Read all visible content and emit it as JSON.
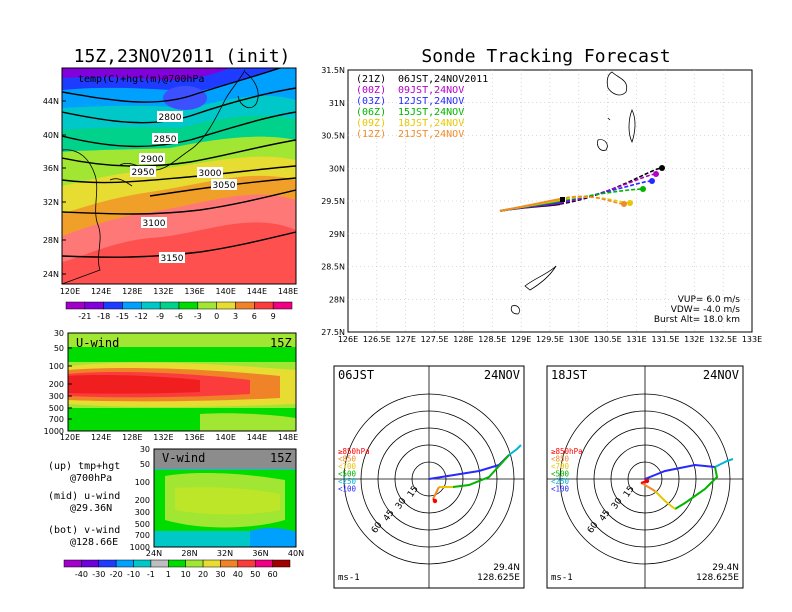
{
  "left_title": "15Z,23NOV2011 (init)",
  "right_title": "Sonde Tracking Forecast",
  "temp_map": {
    "label": "temp(C)+hgt(m)@700hPa",
    "lat_ticks": [
      "44N",
      "40N",
      "36N",
      "32N",
      "28N",
      "24N"
    ],
    "lon_ticks": [
      "120E",
      "124E",
      "128E",
      "132E",
      "136E",
      "140E",
      "144E",
      "148E"
    ],
    "contours": [
      "2800",
      "2850",
      "2900",
      "2950",
      "3000",
      "3050",
      "3100",
      "3150"
    ],
    "colorbar": [
      "-21",
      "-18",
      "-15",
      "-12",
      "-9",
      "-6",
      "-3",
      "0",
      "3",
      "6",
      "9"
    ],
    "colorbar_colors": [
      "#a000c8",
      "#8200dc",
      "#1e3cff",
      "#00a0ff",
      "#00c8c8",
      "#00d28c",
      "#00dc00",
      "#a0e632",
      "#e6dc32",
      "#f08228",
      "#fa3c3c",
      "#f00082"
    ]
  },
  "u_wind": {
    "label": "U-wind",
    "time": "15Z",
    "p_ticks": [
      "30",
      "50",
      "100",
      "200",
      "300",
      "500",
      "700",
      "1000"
    ],
    "lon_ticks": [
      "120E",
      "124E",
      "128E",
      "132E",
      "136E",
      "140E",
      "144E",
      "148E"
    ]
  },
  "v_wind": {
    "label": "V-wind",
    "time": "15Z",
    "p_ticks": [
      "30",
      "50",
      "100",
      "200",
      "300",
      "500",
      "700",
      "1000"
    ],
    "lat_ticks": [
      "24N",
      "28N",
      "32N",
      "36N",
      "40N"
    ],
    "colorbar": [
      "-40",
      "-30",
      "-20",
      "-10",
      "-1",
      "1",
      "10",
      "20",
      "30",
      "40",
      "50",
      "60"
    ],
    "colorbar_colors": [
      "#a000c8",
      "#6e00dc",
      "#1e3cff",
      "#00a0ff",
      "#00c8c8",
      "#bebebe",
      "#00dc00",
      "#a0e632",
      "#e6dc32",
      "#f08228",
      "#fa3c3c",
      "#f00082",
      "#a00000"
    ]
  },
  "legend_notes": [
    {
      "line1": "(up) tmp+hgt",
      "line2": "@700hPa"
    },
    {
      "line1": "(mid) u-wind",
      "line2": "@29.36N"
    },
    {
      "line1": "(bot) v-wind",
      "line2": "@128.66E"
    }
  ],
  "track_panel": {
    "entries": [
      {
        "code": "(21Z)",
        "text": "06JST,24NOV2011",
        "color": "#000000"
      },
      {
        "code": "(00Z)",
        "text": "09JST,24NOV",
        "color": "#b400c8"
      },
      {
        "code": "(03Z)",
        "text": "12JST,24NOV",
        "color": "#2828ff"
      },
      {
        "code": "(06Z)",
        "text": "15JST,24NOV",
        "color": "#00b400"
      },
      {
        "code": "(09Z)",
        "text": "18JST,24NOV",
        "color": "#e6c800"
      },
      {
        "code": "(12Z)",
        "text": "21JST,24NOV",
        "color": "#f08c28"
      }
    ],
    "lat_ticks": [
      "31.5N",
      "31N",
      "30.5N",
      "30N",
      "29.5N",
      "29N",
      "28.5N",
      "28N",
      "27.5N"
    ],
    "lon_ticks": [
      "126E",
      "126.5E",
      "127E",
      "127.5E",
      "128E",
      "128.5E",
      "129E",
      "129.5E",
      "130E",
      "130.5E",
      "131E",
      "131.5E",
      "132E",
      "132.5E",
      "133E"
    ],
    "params": [
      "VUP=  6.0  m/s",
      "VDW= -4.0  m/s",
      "Burst Alt=  18.0  km"
    ]
  },
  "polar_left": {
    "time": "06JST",
    "date": "24NOV",
    "rings": [
      "15",
      "30",
      "45",
      "60"
    ],
    "levels": [
      "≥850hPa",
      "<850",
      "<700",
      "<500",
      "<250",
      "<100"
    ],
    "level_colors": [
      "#ff0000",
      "#f08c28",
      "#e6c800",
      "#00b400",
      "#00b4dc",
      "#2828ff"
    ],
    "unit": "ms-1",
    "lat": "29.4N",
    "lon": "128.625E"
  },
  "polar_right": {
    "time": "18JST",
    "date": "24NOV",
    "rings": [
      "15",
      "30",
      "45",
      "60"
    ],
    "levels": [
      "≥850hPa",
      "<850",
      "<700",
      "<500",
      "<250",
      "<100"
    ],
    "level_colors": [
      "#ff0000",
      "#f08c28",
      "#e6c800",
      "#00b400",
      "#00b4dc",
      "#2828ff"
    ],
    "unit": "ms-1",
    "lat": "29.4N",
    "lon": "128.625E"
  }
}
